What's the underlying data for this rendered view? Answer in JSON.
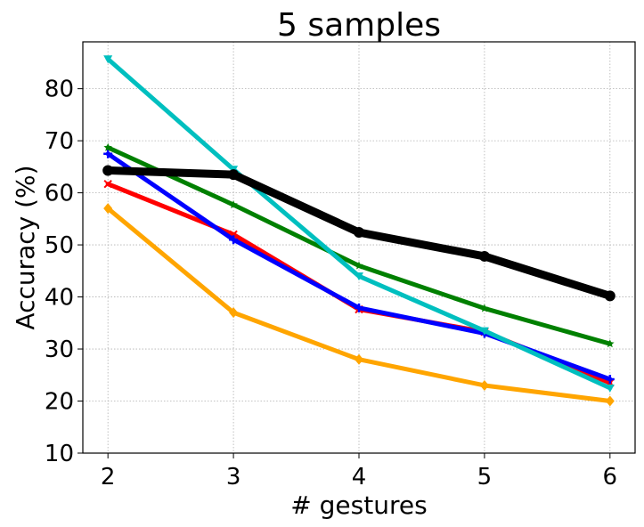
{
  "chart_data": {
    "type": "line",
    "title": "5 samples",
    "xlabel": "# gestures",
    "ylabel": "Accuracy (%)",
    "x": [
      2,
      3,
      4,
      5,
      6
    ],
    "xlim": [
      1.8,
      6.2
    ],
    "ylim": [
      10,
      89
    ],
    "xticks": [
      "2",
      "3",
      "4",
      "5",
      "6"
    ],
    "yticks": [
      "10",
      "20",
      "30",
      "40",
      "50",
      "60",
      "70",
      "80"
    ],
    "grid": true,
    "series": [
      {
        "color": "#ffa500",
        "marker": "diamond",
        "values": [
          57,
          37,
          28,
          23,
          20
        ]
      },
      {
        "color": "#ff0000",
        "marker": "x",
        "values": [
          61.7,
          52,
          37.6,
          33.3,
          23.5
        ]
      },
      {
        "color": "#0000ff",
        "marker": "plus",
        "values": [
          67.5,
          51,
          37.9,
          33,
          24.2
        ]
      },
      {
        "color": "#008000",
        "marker": "star",
        "values": [
          68.7,
          57.7,
          46,
          37.8,
          31
        ]
      },
      {
        "color": "#00bfbf",
        "marker": "triangle-down",
        "values": [
          85.7,
          64.5,
          44,
          33.5,
          22.5
        ]
      },
      {
        "color": "#000000",
        "marker": "circle",
        "values": [
          64.3,
          63.5,
          52.4,
          47.8,
          40.2
        ]
      }
    ]
  }
}
